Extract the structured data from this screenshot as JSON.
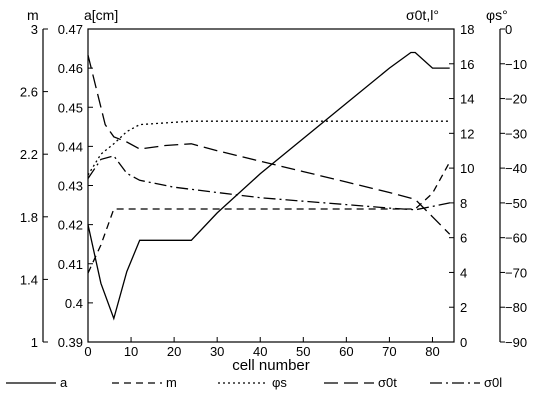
{
  "chart_data": {
    "type": "line",
    "xlabel": "cell number",
    "xlim": [
      0,
      85
    ],
    "xticks": [
      0,
      10,
      20,
      30,
      40,
      50,
      60,
      70,
      80
    ],
    "axes": {
      "m": {
        "label": "m",
        "range": [
          1,
          3
        ],
        "ticks": [
          "1",
          "1.4",
          "1.8",
          "2.2",
          "2.6",
          "3"
        ]
      },
      "a": {
        "label": "a[cm]",
        "range": [
          0.39,
          0.47
        ],
        "ticks": [
          "0.39",
          "0.4",
          "0.41",
          "0.42",
          "0.43",
          "0.44",
          "0.45",
          "0.46",
          "0.47"
        ]
      },
      "sigma": {
        "label": "σ0t,l°",
        "range": [
          0,
          18
        ],
        "ticks": [
          "0",
          "2",
          "4",
          "6",
          "8",
          "10",
          "12",
          "14",
          "16",
          "18"
        ]
      },
      "phi": {
        "label": "φs°",
        "range": [
          -90,
          0
        ],
        "ticks": [
          "−90",
          "−80",
          "−70",
          "−60",
          "−50",
          "−40",
          "−30",
          "−20",
          "−10",
          "0"
        ]
      }
    },
    "series": [
      {
        "name": "a",
        "axis": "a",
        "dash": "",
        "x": [
          0,
          3,
          6,
          9,
          12,
          18,
          24,
          30,
          40,
          50,
          60,
          70,
          75,
          76,
          80,
          84
        ],
        "y": [
          0.42,
          0.405,
          0.396,
          0.408,
          0.416,
          0.416,
          0.416,
          0.423,
          0.433,
          0.442,
          0.451,
          0.46,
          0.464,
          0.464,
          0.46,
          0.46
        ]
      },
      {
        "name": "m",
        "axis": "m",
        "dash": "7,5",
        "x": [
          0,
          3,
          6,
          10,
          20,
          30,
          40,
          50,
          60,
          70,
          76,
          80,
          84
        ],
        "y": [
          1.44,
          1.62,
          1.85,
          1.85,
          1.85,
          1.85,
          1.85,
          1.85,
          1.85,
          1.85,
          1.85,
          1.95,
          2.15
        ]
      },
      {
        "name": "φs",
        "axis": "phi",
        "dash": "2,3",
        "x": [
          0,
          3,
          6,
          9,
          12,
          18,
          24,
          40,
          60,
          80,
          84
        ],
        "y": [
          -42,
          -36,
          -33,
          -29.5,
          -27.5,
          -27,
          -26.5,
          -26.5,
          -26.5,
          -26.5,
          -26.5
        ]
      },
      {
        "name": "σ0t",
        "axis": "sigma",
        "dash": "14,6",
        "x": [
          0,
          2,
          4,
          6,
          9,
          12,
          18,
          24,
          30,
          40,
          50,
          60,
          70,
          76,
          80,
          84
        ],
        "y": [
          16.5,
          14.5,
          12.5,
          11.8,
          11.5,
          11.1,
          11.3,
          11.4,
          11.0,
          10.4,
          9.8,
          9.2,
          8.6,
          8.2,
          7.2,
          6.2
        ]
      },
      {
        "name": "σ0l",
        "axis": "sigma",
        "dash": "12,4,2,4",
        "x": [
          0,
          3,
          6,
          9,
          12,
          20,
          30,
          40,
          50,
          60,
          70,
          76,
          80,
          84
        ],
        "y": [
          9.4,
          10.5,
          10.7,
          9.7,
          9.3,
          8.9,
          8.6,
          8.3,
          8.1,
          7.9,
          7.7,
          7.6,
          7.8,
          8.0
        ]
      }
    ],
    "legend": {
      "placement": "bottom",
      "entries": [
        {
          "label": "a",
          "dash": ""
        },
        {
          "label": "m",
          "dash": "7,5"
        },
        {
          "label": "φs",
          "dash": "2,3"
        },
        {
          "label": "σ0t",
          "dash": "14,6"
        },
        {
          "label": "σ0l",
          "dash": "12,4,2,4"
        }
      ]
    }
  }
}
